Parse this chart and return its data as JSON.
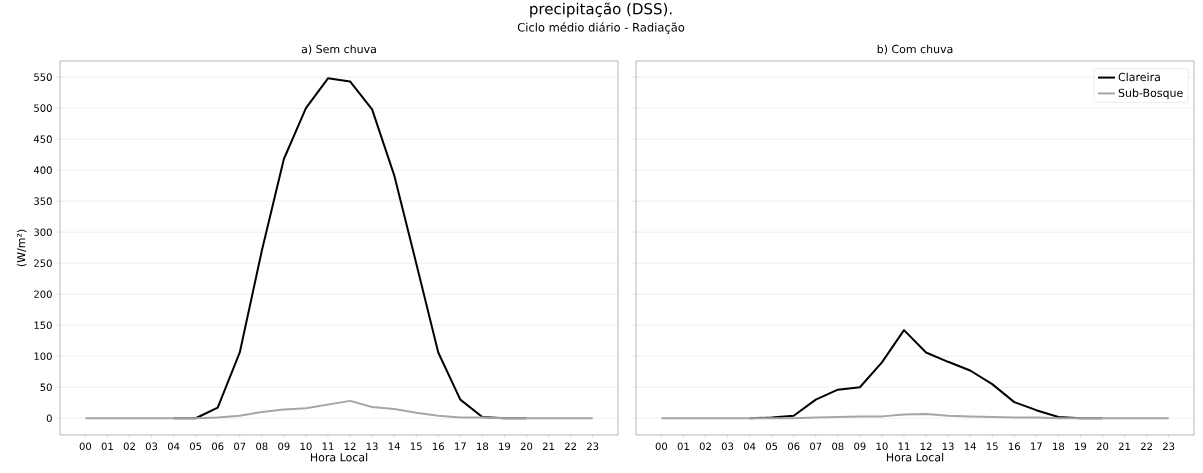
{
  "chart_data": [
    {
      "type": "line",
      "title": "a) Sem chuva",
      "ylabel": "(W/m²)",
      "xlabel": "Hora Local",
      "annotations": [
        "precipitação (DSS).",
        "Ciclo médio diário - Radiação"
      ],
      "categories": [
        "00",
        "01",
        "02",
        "03",
        "04",
        "05",
        "06",
        "07",
        "08",
        "09",
        "10",
        "11",
        "12",
        "13",
        "14",
        "15",
        "16",
        "17",
        "18",
        "19",
        "20",
        "21",
        "22",
        "23"
      ],
      "ylim": [
        -27,
        576
      ],
      "yticks": [
        0,
        50,
        100,
        150,
        200,
        250,
        300,
        350,
        400,
        450,
        500,
        550
      ],
      "grid": "y",
      "legend": false,
      "series": [
        {
          "color": "#000000",
          "values": [
            null,
            null,
            null,
            null,
            0,
            0,
            17,
            106,
            270,
            418,
            500,
            548,
            543,
            498,
            392,
            250,
            106,
            30,
            2,
            0,
            0,
            null,
            null,
            null
          ]
        },
        {
          "color": "#a6a6a6",
          "values": [
            0,
            0,
            0,
            0,
            0,
            0,
            1,
            4,
            10,
            14,
            16,
            22,
            28,
            18,
            15,
            9,
            4,
            1,
            1,
            0,
            0,
            0,
            0,
            0
          ]
        }
      ]
    },
    {
      "type": "line",
      "title": "b) Com chuva",
      "xlabel": "Hora Local",
      "categories": [
        "00",
        "01",
        "02",
        "03",
        "04",
        "05",
        "06",
        "07",
        "08",
        "09",
        "10",
        "11",
        "12",
        "13",
        "14",
        "15",
        "16",
        "17",
        "18",
        "19",
        "20",
        "21",
        "22",
        "23"
      ],
      "ylim": [
        -27,
        576
      ],
      "yticks": [
        0,
        50,
        100,
        150,
        200,
        250,
        300,
        350,
        400,
        450,
        500,
        550
      ],
      "tick_labels": "x",
      "grid": "y",
      "legend": "top right",
      "series": [
        {
          "name": "Clareira",
          "color": "#000000",
          "values": [
            null,
            null,
            null,
            null,
            0,
            1,
            4,
            30,
            46,
            50,
            90,
            142,
            106,
            91,
            77,
            55,
            26,
            13,
            2,
            0,
            0,
            null,
            null,
            null
          ]
        },
        {
          "name": "Sub-Bosque",
          "color": "#a6a6a6",
          "values": [
            0,
            0,
            0,
            0,
            0,
            0,
            0,
            1,
            2,
            3,
            3,
            6,
            7,
            4,
            3,
            2,
            1,
            1,
            0,
            0,
            0,
            0,
            0,
            0
          ]
        }
      ]
    }
  ]
}
